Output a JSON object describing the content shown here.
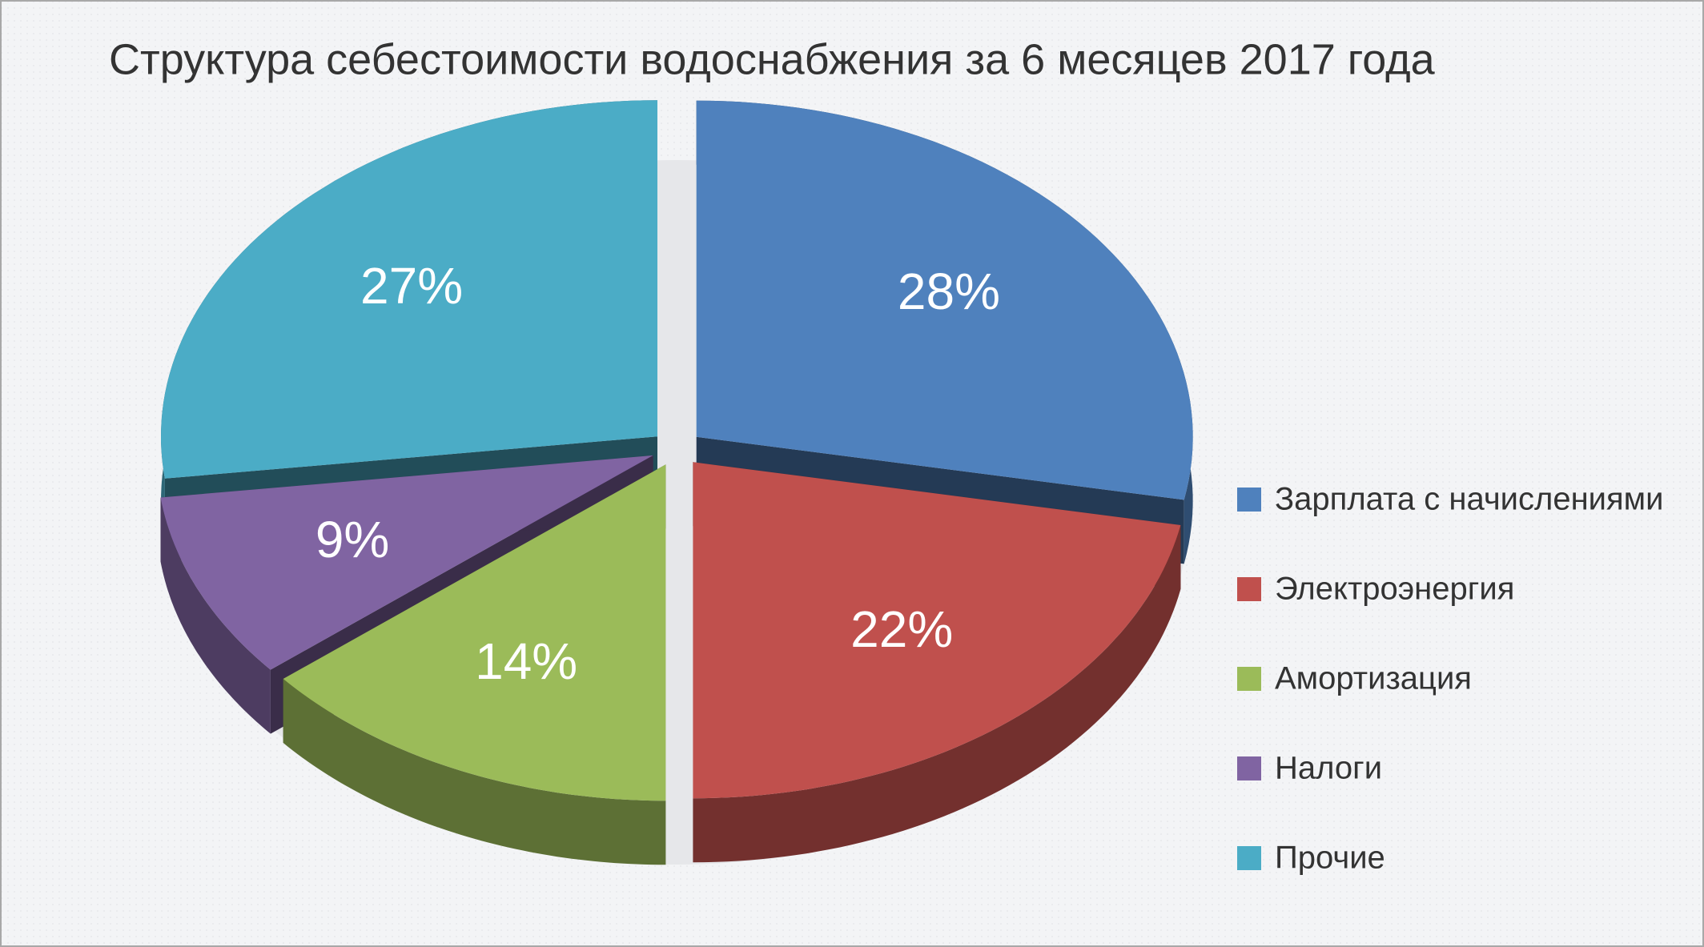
{
  "chart_data": {
    "type": "pie",
    "title": "Структура себестоимости водоснабжения за 6 месяцев 2017 года",
    "categories": [
      "Зарплата с начислениями",
      "Электроэнергия",
      "Амортизация",
      "Налоги",
      "Прочие"
    ],
    "values": [
      28,
      22,
      14,
      9,
      27
    ],
    "value_labels": [
      "28%",
      "22%",
      "14%",
      "9%",
      "27%"
    ],
    "colors": [
      "#4f81bd",
      "#c0504d",
      "#9bbb59",
      "#8064a2",
      "#4bacc6"
    ],
    "legend": "right"
  }
}
